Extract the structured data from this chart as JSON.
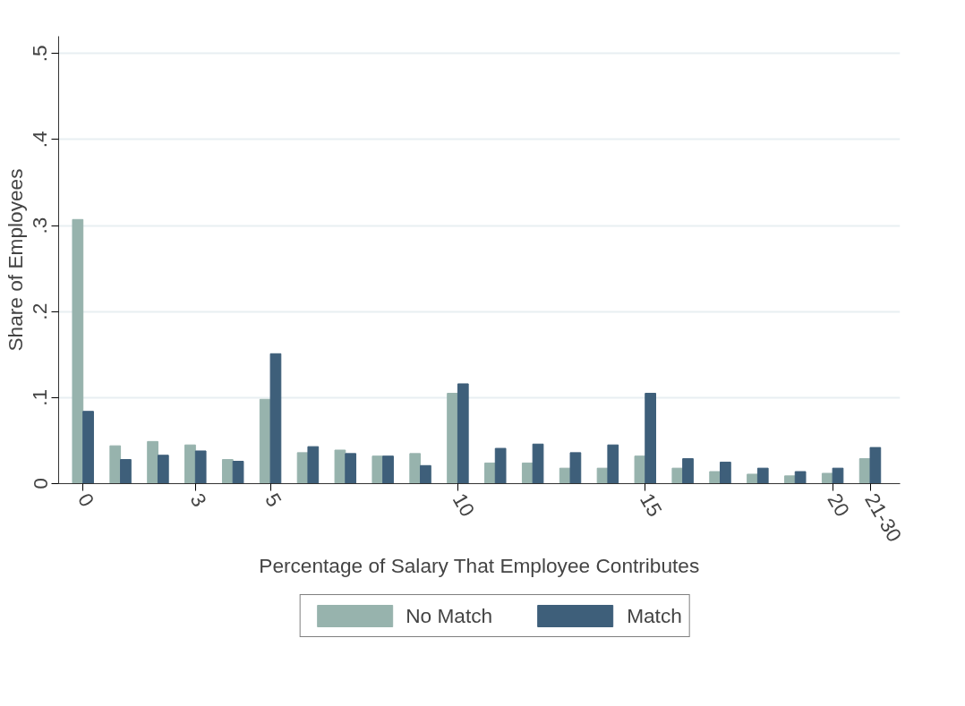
{
  "chart_data": {
    "type": "bar",
    "xlabel": "Percentage of Salary That Employee Contributes",
    "ylabel": "Share of Employees",
    "categories": [
      "0",
      null,
      null,
      "3",
      null,
      "5",
      null,
      null,
      null,
      null,
      "10",
      null,
      null,
      null,
      null,
      "15",
      null,
      null,
      null,
      null,
      "20",
      "21-30"
    ],
    "series": [
      {
        "name": "No Match",
        "color": "#97b3ad",
        "values": [
          0.307,
          0.044,
          0.049,
          0.045,
          0.028,
          0.098,
          0.036,
          0.039,
          0.032,
          0.035,
          0.105,
          0.024,
          0.024,
          0.018,
          0.018,
          0.032,
          0.018,
          0.014,
          0.011,
          0.009,
          0.012,
          0.029
        ]
      },
      {
        "name": "Match",
        "color": "#3e5f7a",
        "values": [
          0.084,
          0.028,
          0.033,
          0.038,
          0.026,
          0.151,
          0.043,
          0.035,
          0.032,
          0.021,
          0.116,
          0.041,
          0.046,
          0.036,
          0.045,
          0.105,
          0.029,
          0.025,
          0.018,
          0.014,
          0.018,
          0.042
        ]
      }
    ],
    "ylim": [
      0,
      0.52
    ],
    "yticks": [
      {
        "value": 0,
        "label": "0"
      },
      {
        "value": 0.1,
        "label": ".1"
      },
      {
        "value": 0.2,
        "label": ".2"
      },
      {
        "value": 0.3,
        "label": ".3"
      },
      {
        "value": 0.4,
        "label": ".4"
      },
      {
        "value": 0.5,
        "label": ".5"
      }
    ],
    "grid": "y",
    "legend": "bottom"
  }
}
